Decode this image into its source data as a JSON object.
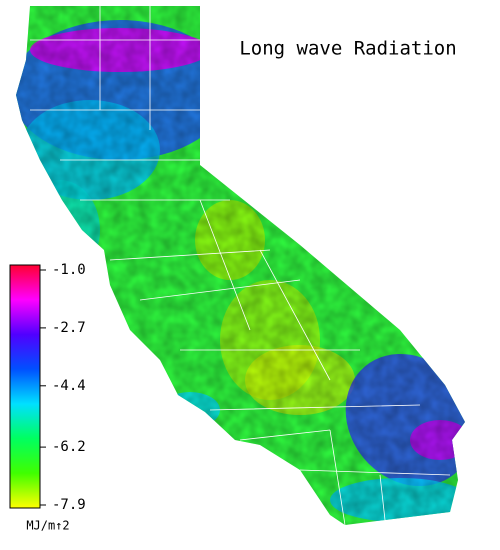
{
  "title": "Long wave Radiation",
  "colorbar": {
    "unit": "MJ/m↑2",
    "lim": [
      -7.9,
      -1.0
    ],
    "ticks": [
      {
        "value": -1.0,
        "label": "-1.0"
      },
      {
        "value": -2.7,
        "label": "-2.7"
      },
      {
        "value": -4.4,
        "label": "-4.4"
      },
      {
        "value": -6.2,
        "label": "-6.2"
      },
      {
        "value": -7.9,
        "label": "-7.9"
      }
    ],
    "colors": [
      "#ff0030",
      "#ff00ff",
      "#5000ff",
      "#0050ff",
      "#00e0ff",
      "#00ff60",
      "#40ff00",
      "#ffff00"
    ]
  }
}
